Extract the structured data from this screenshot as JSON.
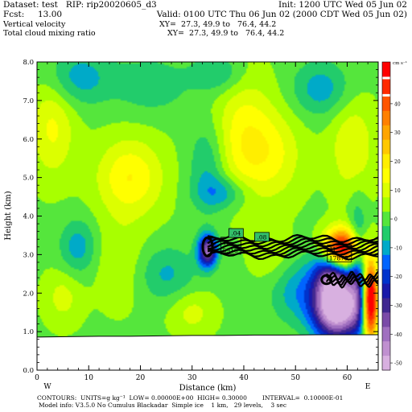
{
  "header": {
    "dataset": "Dataset: test   RIP: rip20020605_d3",
    "init": "Init: 1200 UTC Wed 05 Jun 02",
    "fcst": "Fcst:     13.00",
    "valid": "Valid: 0100 UTC Thu 06 Jun 02 (2000 CDT Wed 05 Jun 02)",
    "field1": "Vertical velocity",
    "xy1": "XY=  27.3, 49.9 to   76.4, 44.2",
    "field2": "Total cloud mixing ratio",
    "xy2": "XY=  27.3, 49.9 to   76.4, 44.2"
  },
  "footer": {
    "line1": "CONTOURS:  UNITS=g kg⁻¹  LOW= 0.00000E+00  HIGH= 0.30000        INTERVAL=  0.10000E-01",
    "line2": "Model info: V3.5.0 No Cumulus Blackadar  Simple ice    1 km,   29 levels,    3 sec"
  },
  "chart_data": {
    "type": "heatmap",
    "xlabel": "Distance (km)",
    "ylabel": "Height (km)",
    "xlim": [
      0,
      66
    ],
    "ylim": [
      0,
      8
    ],
    "x_ticks": [
      0,
      10,
      20,
      30,
      40,
      50,
      60
    ],
    "x_tick_labels": [
      "0",
      "10",
      "20",
      "30",
      "40",
      "50",
      "60"
    ],
    "y_ticks": [
      0,
      1,
      2,
      3,
      4,
      5,
      6,
      7,
      8
    ],
    "y_tick_labels": [
      "0.0",
      "1.0",
      "2.0",
      "3.0",
      "4.0",
      "5.0",
      "6.0",
      "7.0",
      "8.0"
    ],
    "endpoint_labels": {
      "left": "W",
      "right": "E"
    },
    "colorbar": {
      "unit_label": "cm s⁻¹",
      "tick_values": [
        40,
        30,
        20,
        10,
        0,
        -10,
        -20,
        -30,
        -40,
        -50
      ],
      "tick_labels": [
        "40",
        "30",
        "20",
        "10",
        "0",
        "-10",
        "-20",
        "-30",
        "-40",
        "-50"
      ],
      "levels": [
        {
          "value": 52,
          "color": "#ff0000"
        },
        {
          "value": 46,
          "color": "#ff2a00"
        },
        {
          "value": 40,
          "color": "#ff5500"
        },
        {
          "value": 35,
          "color": "#ff8000"
        },
        {
          "value": 30,
          "color": "#ffa500"
        },
        {
          "value": 25,
          "color": "#ffc800"
        },
        {
          "value": 20,
          "color": "#ffee00"
        },
        {
          "value": 15,
          "color": "#ffff00"
        },
        {
          "value": 10,
          "color": "#dcff00"
        },
        {
          "value": 5,
          "color": "#a8ff00"
        },
        {
          "value": 0,
          "color": "#55e63c"
        },
        {
          "value": -5,
          "color": "#22cc6b"
        },
        {
          "value": -10,
          "color": "#00aac8"
        },
        {
          "value": -15,
          "color": "#0064ff"
        },
        {
          "value": -20,
          "color": "#0033cc"
        },
        {
          "value": -25,
          "color": "#1a1aaa"
        },
        {
          "value": -30,
          "color": "#402890"
        },
        {
          "value": -35,
          "color": "#7a4aa8"
        },
        {
          "value": -40,
          "color": "#a070c0"
        },
        {
          "value": -45,
          "color": "#c090d0"
        },
        {
          "value": -50,
          "color": "#d8b0e0"
        }
      ]
    },
    "terrain_height": [
      0.86,
      0.87,
      0.88,
      0.88,
      0.89,
      0.9,
      0.9,
      0.91,
      0.91,
      0.92,
      0.92,
      0.92
    ],
    "terrain_x": [
      0,
      6,
      12,
      18,
      24,
      30,
      36,
      42,
      48,
      54,
      60,
      66
    ],
    "velocity_blobs": [
      {
        "x": 8,
        "y": 7.6,
        "sx": 4.5,
        "sy": 0.5,
        "a": -12
      },
      {
        "x": 22,
        "y": 7.4,
        "sx": 5,
        "sy": 0.5,
        "a": -8
      },
      {
        "x": 35,
        "y": 7.7,
        "sx": 3.5,
        "sy": 0.35,
        "a": -10
      },
      {
        "x": 55,
        "y": 7.3,
        "sx": 4,
        "sy": 0.5,
        "a": -12
      },
      {
        "x": 3,
        "y": 6.3,
        "sx": 3,
        "sy": 0.9,
        "a": 12
      },
      {
        "x": 18,
        "y": 5.0,
        "sx": 4.5,
        "sy": 0.7,
        "a": 16
      },
      {
        "x": 40,
        "y": 6.0,
        "sx": 4,
        "sy": 1.1,
        "a": 14
      },
      {
        "x": 46,
        "y": 5.6,
        "sx": 4,
        "sy": 0.8,
        "a": 10
      },
      {
        "x": 61,
        "y": 5.8,
        "sx": 3,
        "sy": 0.9,
        "a": 11
      },
      {
        "x": 33,
        "y": 5.3,
        "sx": 2.5,
        "sy": 0.8,
        "a": -10
      },
      {
        "x": 36,
        "y": 4.6,
        "sx": 3.5,
        "sy": 0.3,
        "a": -12
      },
      {
        "x": 8,
        "y": 3.2,
        "sx": 2.5,
        "sy": 0.5,
        "a": -12
      },
      {
        "x": 16,
        "y": 2.8,
        "sx": 3.5,
        "sy": 0.8,
        "a": 6
      },
      {
        "x": 25,
        "y": 2.5,
        "sx": 4,
        "sy": 0.5,
        "a": -10
      },
      {
        "x": 33,
        "y": 3.1,
        "sx": 1.3,
        "sy": 0.3,
        "a": -40
      },
      {
        "x": 46,
        "y": 2.9,
        "sx": 3,
        "sy": 0.5,
        "a": 6
      },
      {
        "x": 50,
        "y": 2.1,
        "sx": 3.5,
        "sy": 0.6,
        "a": -12
      },
      {
        "x": 58,
        "y": 1.6,
        "sx": 3.2,
        "sy": 0.55,
        "a": -60
      },
      {
        "x": 57,
        "y": 2.5,
        "sx": 2.5,
        "sy": 0.5,
        "a": -30
      },
      {
        "x": 59,
        "y": 3.15,
        "sx": 2.5,
        "sy": 0.35,
        "a": 60
      },
      {
        "x": 64.5,
        "y": 1.8,
        "sx": 1.0,
        "sy": 0.7,
        "a": 65
      },
      {
        "x": 62,
        "y": 2.6,
        "sx": 1.3,
        "sy": 1.1,
        "a": -20
      },
      {
        "x": 30,
        "y": 1.5,
        "sx": 3,
        "sy": 0.4,
        "a": 8
      },
      {
        "x": 5,
        "y": 1.9,
        "sx": 2.5,
        "sy": 0.5,
        "a": 8
      }
    ],
    "cloud_contours": [
      {
        "x0": 33,
        "x1": 66,
        "y": 3.2,
        "half_thickness": 0.22,
        "count": 9
      },
      {
        "x0": 56,
        "x1": 66,
        "y": 2.35,
        "half_thickness": 0.1,
        "count": 4
      }
    ],
    "extrema": [
      {
        "kind": "H",
        "x": 37.5,
        "y": 3.22,
        "value": "5916"
      },
      {
        "kind": "H",
        "x": 58.5,
        "y": 3.02,
        "value": "17879"
      }
    ],
    "contour_labels": [
      {
        "x": 38.5,
        "y": 3.55,
        "text": ".04"
      },
      {
        "x": 43.5,
        "y": 3.45,
        "text": ".08"
      }
    ]
  }
}
